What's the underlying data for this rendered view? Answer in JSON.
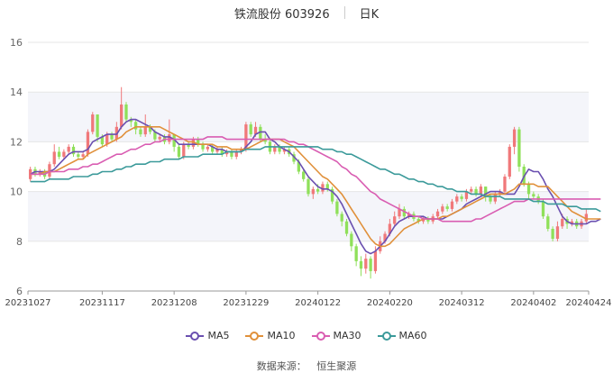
{
  "header": {
    "stock_label": "铁流股份 603926",
    "period_label": "日K"
  },
  "source": {
    "label": "数据来源：",
    "name": "恒生聚源"
  },
  "colors": {
    "up": "#f0787a",
    "down": "#8fe05a",
    "ma5": "#6a4fb0",
    "ma10": "#e0903a",
    "ma30": "#d95db2",
    "ma60": "#3b9a9a",
    "grid": "#e6e6e6",
    "band": "#f4f5fa"
  },
  "chart_data": {
    "type": "candlestick",
    "title": "铁流股份 603926 日K",
    "ylim": [
      6,
      16
    ],
    "yticks": [
      6,
      8,
      10,
      12,
      14,
      16
    ],
    "xtick_labels": [
      "20231027",
      "20231117",
      "20231208",
      "20231229",
      "20240122",
      "20240220",
      "20240312",
      "20240402",
      "20240424"
    ],
    "xtick_index": [
      0,
      15,
      30,
      45,
      60,
      75,
      90,
      105,
      120
    ],
    "legend": [
      "MA5",
      "MA10",
      "MA30",
      "MA60"
    ],
    "legend_position": "bottom",
    "candles": [
      {
        "o": 10.5,
        "c": 10.9,
        "h": 11.0,
        "l": 10.4
      },
      {
        "o": 10.9,
        "c": 10.7,
        "h": 11.0,
        "l": 10.6
      },
      {
        "o": 10.7,
        "c": 10.8,
        "h": 10.9,
        "l": 10.6
      },
      {
        "o": 10.8,
        "c": 10.6,
        "h": 10.9,
        "l": 10.5
      },
      {
        "o": 10.6,
        "c": 11.1,
        "h": 11.2,
        "l": 10.5
      },
      {
        "o": 11.1,
        "c": 11.6,
        "h": 11.9,
        "l": 11.0
      },
      {
        "o": 11.6,
        "c": 11.4,
        "h": 11.8,
        "l": 11.3
      },
      {
        "o": 11.4,
        "c": 11.6,
        "h": 11.7,
        "l": 11.3
      },
      {
        "o": 11.6,
        "c": 11.8,
        "h": 11.9,
        "l": 11.5
      },
      {
        "o": 11.8,
        "c": 11.5,
        "h": 11.9,
        "l": 11.4
      },
      {
        "o": 11.5,
        "c": 11.4,
        "h": 11.6,
        "l": 11.3
      },
      {
        "o": 11.4,
        "c": 11.5,
        "h": 11.6,
        "l": 11.3
      },
      {
        "o": 11.5,
        "c": 12.4,
        "h": 12.5,
        "l": 11.4
      },
      {
        "o": 12.4,
        "c": 13.1,
        "h": 13.2,
        "l": 12.3
      },
      {
        "o": 13.1,
        "c": 12.2,
        "h": 13.1,
        "l": 12.0
      },
      {
        "o": 12.2,
        "c": 11.9,
        "h": 12.3,
        "l": 11.8
      },
      {
        "o": 11.9,
        "c": 12.3,
        "h": 12.4,
        "l": 11.8
      },
      {
        "o": 12.3,
        "c": 12.1,
        "h": 12.4,
        "l": 12.0
      },
      {
        "o": 12.1,
        "c": 12.6,
        "h": 12.8,
        "l": 12.0
      },
      {
        "o": 12.6,
        "c": 13.5,
        "h": 14.2,
        "l": 12.5
      },
      {
        "o": 13.5,
        "c": 12.9,
        "h": 13.6,
        "l": 12.8
      },
      {
        "o": 12.9,
        "c": 12.8,
        "h": 13.0,
        "l": 12.6
      },
      {
        "o": 12.8,
        "c": 12.5,
        "h": 12.9,
        "l": 12.3
      },
      {
        "o": 12.5,
        "c": 12.3,
        "h": 12.6,
        "l": 12.2
      },
      {
        "o": 12.3,
        "c": 12.6,
        "h": 13.1,
        "l": 12.2
      },
      {
        "o": 12.6,
        "c": 12.4,
        "h": 12.7,
        "l": 12.3
      },
      {
        "o": 12.4,
        "c": 12.1,
        "h": 12.5,
        "l": 12.0
      },
      {
        "o": 12.1,
        "c": 12.2,
        "h": 12.3,
        "l": 12.0
      },
      {
        "o": 12.2,
        "c": 12.0,
        "h": 12.3,
        "l": 11.9
      },
      {
        "o": 12.0,
        "c": 12.3,
        "h": 12.9,
        "l": 11.9
      },
      {
        "o": 12.3,
        "c": 11.8,
        "h": 12.3,
        "l": 11.6
      },
      {
        "o": 11.8,
        "c": 11.4,
        "h": 11.9,
        "l": 11.3
      },
      {
        "o": 11.4,
        "c": 11.9,
        "h": 12.0,
        "l": 11.3
      },
      {
        "o": 11.9,
        "c": 11.8,
        "h": 12.0,
        "l": 11.7
      },
      {
        "o": 11.8,
        "c": 12.1,
        "h": 12.2,
        "l": 11.7
      },
      {
        "o": 12.1,
        "c": 11.9,
        "h": 12.2,
        "l": 11.8
      },
      {
        "o": 11.9,
        "c": 11.7,
        "h": 12.0,
        "l": 11.6
      },
      {
        "o": 11.7,
        "c": 11.8,
        "h": 11.9,
        "l": 11.6
      },
      {
        "o": 11.8,
        "c": 11.6,
        "h": 11.9,
        "l": 11.5
      },
      {
        "o": 11.6,
        "c": 11.7,
        "h": 11.8,
        "l": 11.5
      },
      {
        "o": 11.7,
        "c": 11.5,
        "h": 11.8,
        "l": 11.4
      },
      {
        "o": 11.5,
        "c": 11.6,
        "h": 11.7,
        "l": 11.4
      },
      {
        "o": 11.6,
        "c": 11.4,
        "h": 11.7,
        "l": 11.3
      },
      {
        "o": 11.4,
        "c": 11.6,
        "h": 11.7,
        "l": 11.3
      },
      {
        "o": 11.6,
        "c": 11.7,
        "h": 11.8,
        "l": 11.5
      },
      {
        "o": 11.7,
        "c": 12.7,
        "h": 12.8,
        "l": 11.6
      },
      {
        "o": 12.7,
        "c": 12.3,
        "h": 12.8,
        "l": 12.2
      },
      {
        "o": 12.3,
        "c": 12.6,
        "h": 12.8,
        "l": 12.2
      },
      {
        "o": 12.6,
        "c": 12.1,
        "h": 12.7,
        "l": 12.0
      },
      {
        "o": 12.1,
        "c": 12.0,
        "h": 12.3,
        "l": 11.9
      },
      {
        "o": 12.0,
        "c": 11.6,
        "h": 12.1,
        "l": 11.5
      },
      {
        "o": 11.6,
        "c": 11.8,
        "h": 11.9,
        "l": 11.5
      },
      {
        "o": 11.8,
        "c": 11.6,
        "h": 11.9,
        "l": 11.5
      },
      {
        "o": 11.6,
        "c": 11.7,
        "h": 11.8,
        "l": 11.5
      },
      {
        "o": 11.7,
        "c": 11.5,
        "h": 11.8,
        "l": 11.4
      },
      {
        "o": 11.5,
        "c": 11.2,
        "h": 11.6,
        "l": 11.1
      },
      {
        "o": 11.2,
        "c": 10.8,
        "h": 11.3,
        "l": 10.7
      },
      {
        "o": 10.8,
        "c": 10.5,
        "h": 10.9,
        "l": 10.4
      },
      {
        "o": 10.5,
        "c": 9.9,
        "h": 10.6,
        "l": 9.8
      },
      {
        "o": 9.9,
        "c": 10.1,
        "h": 10.2,
        "l": 9.7
      },
      {
        "o": 10.1,
        "c": 10.0,
        "h": 10.3,
        "l": 9.9
      },
      {
        "o": 10.0,
        "c": 10.3,
        "h": 10.4,
        "l": 9.9
      },
      {
        "o": 10.3,
        "c": 10.1,
        "h": 10.4,
        "l": 10.0
      },
      {
        "o": 10.1,
        "c": 9.6,
        "h": 10.2,
        "l": 9.5
      },
      {
        "o": 9.6,
        "c": 9.1,
        "h": 9.7,
        "l": 9.0
      },
      {
        "o": 9.1,
        "c": 8.8,
        "h": 9.2,
        "l": 8.6
      },
      {
        "o": 8.8,
        "c": 8.3,
        "h": 8.9,
        "l": 8.2
      },
      {
        "o": 8.3,
        "c": 7.8,
        "h": 8.4,
        "l": 7.6
      },
      {
        "o": 7.8,
        "c": 7.2,
        "h": 7.9,
        "l": 7.0
      },
      {
        "o": 7.2,
        "c": 6.9,
        "h": 7.4,
        "l": 6.6
      },
      {
        "o": 6.9,
        "c": 7.3,
        "h": 7.5,
        "l": 6.7
      },
      {
        "o": 7.3,
        "c": 6.8,
        "h": 7.4,
        "l": 6.5
      },
      {
        "o": 6.8,
        "c": 7.6,
        "h": 7.8,
        "l": 6.7
      },
      {
        "o": 7.6,
        "c": 8.0,
        "h": 8.2,
        "l": 7.5
      },
      {
        "o": 8.0,
        "c": 8.3,
        "h": 8.4,
        "l": 7.9
      },
      {
        "o": 8.3,
        "c": 8.7,
        "h": 8.9,
        "l": 8.2
      },
      {
        "o": 8.7,
        "c": 9.0,
        "h": 9.2,
        "l": 8.6
      },
      {
        "o": 9.0,
        "c": 9.3,
        "h": 9.5,
        "l": 8.9
      },
      {
        "o": 9.3,
        "c": 9.0,
        "h": 9.4,
        "l": 8.9
      },
      {
        "o": 9.0,
        "c": 9.1,
        "h": 9.2,
        "l": 8.9
      },
      {
        "o": 9.1,
        "c": 8.9,
        "h": 9.2,
        "l": 8.8
      },
      {
        "o": 8.9,
        "c": 8.8,
        "h": 9.0,
        "l": 8.7
      },
      {
        "o": 8.8,
        "c": 8.9,
        "h": 9.0,
        "l": 8.7
      },
      {
        "o": 8.9,
        "c": 8.8,
        "h": 9.0,
        "l": 8.7
      },
      {
        "o": 8.8,
        "c": 9.0,
        "h": 9.1,
        "l": 8.7
      },
      {
        "o": 9.0,
        "c": 9.2,
        "h": 9.3,
        "l": 8.9
      },
      {
        "o": 9.2,
        "c": 9.4,
        "h": 9.5,
        "l": 9.1
      },
      {
        "o": 9.4,
        "c": 9.3,
        "h": 9.5,
        "l": 9.2
      },
      {
        "o": 9.3,
        "c": 9.6,
        "h": 9.7,
        "l": 9.2
      },
      {
        "o": 9.6,
        "c": 9.8,
        "h": 9.9,
        "l": 9.5
      },
      {
        "o": 9.8,
        "c": 9.7,
        "h": 9.9,
        "l": 9.6
      },
      {
        "o": 9.7,
        "c": 10.0,
        "h": 10.1,
        "l": 9.6
      },
      {
        "o": 10.0,
        "c": 10.1,
        "h": 10.2,
        "l": 9.9
      },
      {
        "o": 10.1,
        "c": 9.9,
        "h": 10.2,
        "l": 9.8
      },
      {
        "o": 9.9,
        "c": 10.2,
        "h": 10.3,
        "l": 9.8
      },
      {
        "o": 10.2,
        "c": 9.8,
        "h": 10.2,
        "l": 9.6
      },
      {
        "o": 9.8,
        "c": 9.6,
        "h": 9.9,
        "l": 9.5
      },
      {
        "o": 9.6,
        "c": 9.9,
        "h": 10.0,
        "l": 9.5
      },
      {
        "o": 9.9,
        "c": 10.0,
        "h": 10.1,
        "l": 9.8
      },
      {
        "o": 10.0,
        "c": 10.6,
        "h": 10.7,
        "l": 9.9
      },
      {
        "o": 10.6,
        "c": 11.8,
        "h": 11.9,
        "l": 10.5
      },
      {
        "o": 11.8,
        "c": 12.5,
        "h": 12.6,
        "l": 11.5
      },
      {
        "o": 12.5,
        "c": 11.0,
        "h": 12.6,
        "l": 10.8
      },
      {
        "o": 11.0,
        "c": 10.3,
        "h": 11.1,
        "l": 10.2
      },
      {
        "o": 10.3,
        "c": 9.9,
        "h": 10.4,
        "l": 9.7
      },
      {
        "o": 9.9,
        "c": 9.8,
        "h": 10.0,
        "l": 9.7
      },
      {
        "o": 9.8,
        "c": 9.6,
        "h": 9.9,
        "l": 9.5
      },
      {
        "o": 9.6,
        "c": 9.0,
        "h": 9.7,
        "l": 8.9
      },
      {
        "o": 9.0,
        "c": 8.5,
        "h": 9.1,
        "l": 8.4
      },
      {
        "o": 8.5,
        "c": 8.1,
        "h": 8.6,
        "l": 8.0
      },
      {
        "o": 8.1,
        "c": 8.6,
        "h": 8.8,
        "l": 8.0
      },
      {
        "o": 8.6,
        "c": 8.9,
        "h": 9.1,
        "l": 8.5
      },
      {
        "o": 8.9,
        "c": 8.7,
        "h": 9.0,
        "l": 8.5
      },
      {
        "o": 8.7,
        "c": 8.8,
        "h": 8.9,
        "l": 8.6
      },
      {
        "o": 8.8,
        "c": 8.6,
        "h": 8.9,
        "l": 8.5
      },
      {
        "o": 8.6,
        "c": 8.8,
        "h": 8.9,
        "l": 8.5
      },
      {
        "o": 8.8,
        "c": 9.1,
        "h": 9.3,
        "l": 8.7
      }
    ],
    "series": [
      {
        "name": "MA5",
        "values": [
          10.7,
          10.8,
          10.8,
          10.8,
          10.8,
          10.9,
          11.1,
          11.3,
          11.5,
          11.6,
          11.6,
          11.6,
          11.7,
          12.0,
          12.1,
          12.2,
          12.3,
          12.3,
          12.3,
          12.6,
          12.8,
          12.9,
          12.9,
          12.8,
          12.7,
          12.6,
          12.4,
          12.3,
          12.2,
          12.2,
          12.1,
          11.9,
          11.9,
          11.9,
          11.9,
          11.9,
          11.9,
          11.9,
          11.8,
          11.7,
          11.7,
          11.6,
          11.6,
          11.6,
          11.6,
          11.8,
          12.0,
          12.3,
          12.4,
          12.4,
          12.1,
          12.0,
          11.8,
          11.7,
          11.6,
          11.4,
          11.2,
          10.9,
          10.6,
          10.4,
          10.2,
          10.1,
          10.1,
          10.0,
          9.8,
          9.5,
          9.1,
          8.7,
          8.3,
          7.9,
          7.6,
          7.5,
          7.6,
          7.8,
          8.0,
          8.3,
          8.6,
          8.8,
          8.9,
          9.0,
          9.0,
          9.0,
          9.0,
          8.9,
          8.9,
          8.9,
          8.9,
          9.0,
          9.1,
          9.2,
          9.3,
          9.5,
          9.6,
          9.7,
          9.8,
          9.9,
          10.0,
          10.0,
          10.0,
          9.9,
          9.9,
          9.9,
          10.2,
          10.6,
          10.9,
          10.8,
          10.8,
          10.5,
          10.1,
          9.8,
          9.4,
          9.0,
          8.8,
          8.7,
          8.7,
          8.7,
          8.7,
          8.8,
          8.8,
          8.9
        ]
      },
      {
        "name": "MA10",
        "values": [
          10.7,
          10.7,
          10.7,
          10.8,
          10.8,
          10.8,
          10.9,
          11.0,
          11.1,
          11.2,
          11.3,
          11.3,
          11.5,
          11.6,
          11.7,
          11.8,
          11.9,
          12.0,
          12.1,
          12.2,
          12.4,
          12.5,
          12.6,
          12.6,
          12.6,
          12.6,
          12.6,
          12.6,
          12.5,
          12.4,
          12.3,
          12.2,
          12.1,
          12.0,
          12.0,
          11.9,
          11.9,
          11.9,
          11.9,
          11.8,
          11.8,
          11.8,
          11.7,
          11.7,
          11.7,
          11.7,
          11.8,
          11.9,
          12.0,
          12.1,
          12.1,
          12.1,
          12.1,
          12.0,
          11.9,
          11.8,
          11.6,
          11.4,
          11.2,
          11.0,
          10.8,
          10.6,
          10.5,
          10.3,
          10.1,
          9.9,
          9.6,
          9.3,
          9.0,
          8.7,
          8.4,
          8.1,
          7.9,
          7.8,
          7.8,
          7.9,
          8.1,
          8.3,
          8.5,
          8.6,
          8.7,
          8.8,
          8.9,
          8.9,
          8.9,
          8.9,
          9.0,
          9.0,
          9.1,
          9.2,
          9.3,
          9.4,
          9.5,
          9.6,
          9.7,
          9.8,
          9.9,
          9.9,
          9.9,
          9.9,
          10.0,
          10.1,
          10.3,
          10.3,
          10.3,
          10.3,
          10.2,
          10.2,
          10.2,
          10.0,
          9.8,
          9.6,
          9.4,
          9.2,
          9.1,
          9.0,
          8.9,
          8.9,
          8.9,
          8.9
        ]
      },
      {
        "name": "MA30",
        "values": [
          10.7,
          10.7,
          10.7,
          10.7,
          10.8,
          10.8,
          10.8,
          10.8,
          10.9,
          10.9,
          10.9,
          11.0,
          11.0,
          11.1,
          11.1,
          11.2,
          11.3,
          11.4,
          11.5,
          11.5,
          11.6,
          11.7,
          11.7,
          11.8,
          11.9,
          11.9,
          12.0,
          12.0,
          12.1,
          12.1,
          12.1,
          12.1,
          12.1,
          12.1,
          12.1,
          12.1,
          12.1,
          12.2,
          12.2,
          12.2,
          12.2,
          12.1,
          12.1,
          12.1,
          12.1,
          12.1,
          12.1,
          12.1,
          12.1,
          12.1,
          12.1,
          12.1,
          12.1,
          12.1,
          12.0,
          12.0,
          11.9,
          11.9,
          11.8,
          11.7,
          11.6,
          11.5,
          11.4,
          11.3,
          11.2,
          11.0,
          10.9,
          10.7,
          10.6,
          10.4,
          10.2,
          10.0,
          9.9,
          9.7,
          9.6,
          9.5,
          9.4,
          9.3,
          9.2,
          9.1,
          9.0,
          9.0,
          8.9,
          8.9,
          8.9,
          8.9,
          8.8,
          8.8,
          8.8,
          8.8,
          8.8,
          8.8,
          8.8,
          8.9,
          8.9,
          9.0,
          9.1,
          9.2,
          9.3,
          9.4,
          9.5,
          9.6,
          9.6,
          9.6,
          9.7,
          9.7,
          9.7,
          9.7,
          9.7,
          9.7,
          9.7,
          9.7,
          9.7,
          9.7,
          9.7,
          9.7,
          9.7,
          9.7,
          9.7,
          9.7
        ]
      },
      {
        "name": "MA60",
        "values": [
          10.4,
          10.4,
          10.4,
          10.4,
          10.5,
          10.5,
          10.5,
          10.5,
          10.5,
          10.6,
          10.6,
          10.6,
          10.6,
          10.7,
          10.7,
          10.8,
          10.8,
          10.8,
          10.9,
          10.9,
          11.0,
          11.0,
          11.1,
          11.1,
          11.1,
          11.2,
          11.2,
          11.2,
          11.3,
          11.3,
          11.3,
          11.3,
          11.4,
          11.4,
          11.4,
          11.4,
          11.5,
          11.5,
          11.5,
          11.5,
          11.5,
          11.6,
          11.6,
          11.6,
          11.6,
          11.7,
          11.7,
          11.7,
          11.7,
          11.8,
          11.8,
          11.8,
          11.8,
          11.8,
          11.8,
          11.8,
          11.8,
          11.8,
          11.8,
          11.8,
          11.8,
          11.7,
          11.7,
          11.7,
          11.6,
          11.6,
          11.5,
          11.5,
          11.4,
          11.3,
          11.2,
          11.1,
          11.0,
          10.9,
          10.9,
          10.8,
          10.7,
          10.7,
          10.6,
          10.5,
          10.5,
          10.4,
          10.4,
          10.3,
          10.3,
          10.2,
          10.2,
          10.1,
          10.1,
          10.0,
          10.0,
          10.0,
          9.9,
          9.9,
          9.9,
          9.8,
          9.8,
          9.8,
          9.8,
          9.7,
          9.7,
          9.7,
          9.7,
          9.7,
          9.7,
          9.6,
          9.6,
          9.6,
          9.5,
          9.5,
          9.5,
          9.5,
          9.4,
          9.4,
          9.4,
          9.3,
          9.3,
          9.3,
          9.3,
          9.2
        ]
      }
    ]
  }
}
